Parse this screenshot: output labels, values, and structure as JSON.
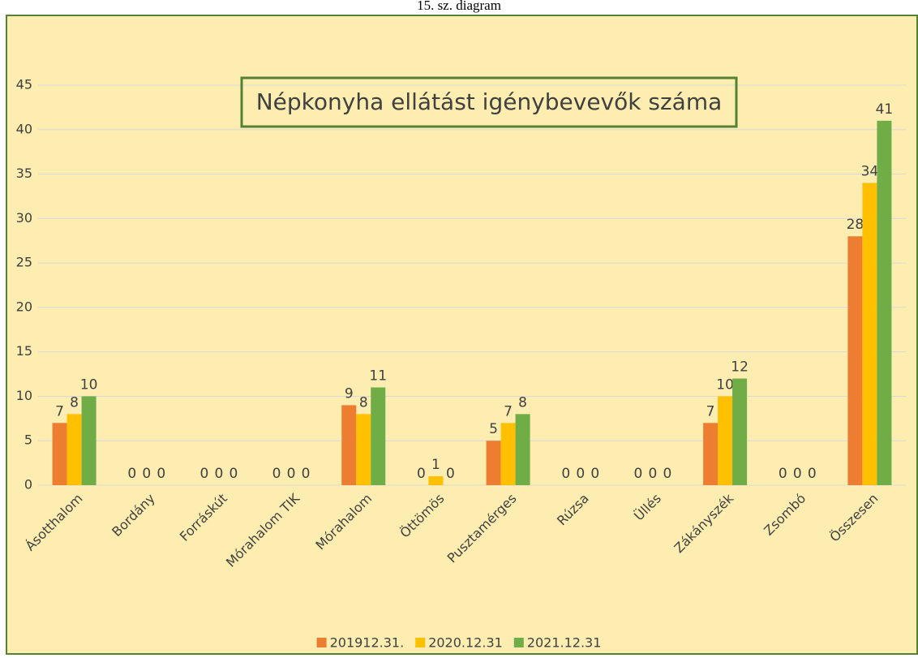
{
  "caption": "15. sz. diagram",
  "chart_data": {
    "type": "bar",
    "title": "Népkonyha ellátást igénybevevők száma",
    "categories": [
      "Ásotthalom",
      "Bordány",
      "Forráskút",
      "Mórahalom TIK",
      "Mórahalom",
      "Öttömös",
      "Pusztamérges",
      "Rúzsa",
      "Üllés",
      "Zákányszék",
      "Zsombó",
      "Összesen"
    ],
    "series": [
      {
        "name": "201912.31.",
        "color": "#ed7d31",
        "values": [
          7,
          0,
          0,
          0,
          9,
          0,
          5,
          0,
          0,
          7,
          0,
          28
        ]
      },
      {
        "name": "2020.12.31",
        "color": "#ffc000",
        "values": [
          8,
          0,
          0,
          0,
          8,
          1,
          7,
          0,
          0,
          10,
          0,
          34
        ]
      },
      {
        "name": "2021.12.31",
        "color": "#70ad47",
        "values": [
          10,
          0,
          0,
          0,
          11,
          0,
          8,
          0,
          0,
          12,
          0,
          41
        ]
      }
    ],
    "ylim": [
      0,
      45
    ],
    "yticks": [
      0,
      5,
      10,
      15,
      20,
      25,
      30,
      35,
      40,
      45
    ],
    "grid": true,
    "legend": "bottom"
  }
}
